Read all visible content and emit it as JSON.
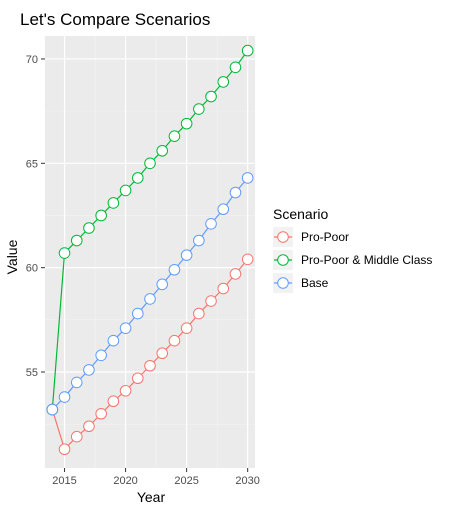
{
  "chart_data": {
    "type": "line",
    "title": "Let's Compare Scenarios",
    "xlabel": "Year",
    "ylabel": "Value",
    "xlim": [
      2013.4,
      2030.6
    ],
    "ylim": [
      50.4,
      71.1
    ],
    "x_ticks": [
      2015,
      2020,
      2025,
      2030
    ],
    "y_ticks": [
      55,
      60,
      65,
      70
    ],
    "grid": true,
    "legend": {
      "title": "Scenario",
      "position": "right"
    },
    "x": [
      2014,
      2015,
      2016,
      2017,
      2018,
      2019,
      2020,
      2021,
      2022,
      2023,
      2024,
      2025,
      2026,
      2027,
      2028,
      2029,
      2030
    ],
    "series": [
      {
        "name": "Pro-Poor",
        "color": "#F8766D",
        "values": [
          53.2,
          51.3,
          51.9,
          52.4,
          53.0,
          53.6,
          54.1,
          54.7,
          55.3,
          55.9,
          56.5,
          57.1,
          57.8,
          58.4,
          59.0,
          59.7,
          60.4
        ]
      },
      {
        "name": "Pro-Poor & Middle Class",
        "color": "#00BA38",
        "values": [
          53.2,
          60.7,
          61.3,
          61.9,
          62.5,
          63.1,
          63.7,
          64.3,
          65.0,
          65.6,
          66.3,
          66.9,
          67.6,
          68.2,
          68.9,
          69.6,
          70.4
        ]
      },
      {
        "name": "Base",
        "color": "#619CFF",
        "values": [
          53.2,
          53.8,
          54.5,
          55.1,
          55.8,
          56.5,
          57.1,
          57.8,
          58.5,
          59.2,
          59.9,
          60.6,
          61.3,
          62.1,
          62.8,
          63.6,
          64.3
        ]
      }
    ]
  }
}
